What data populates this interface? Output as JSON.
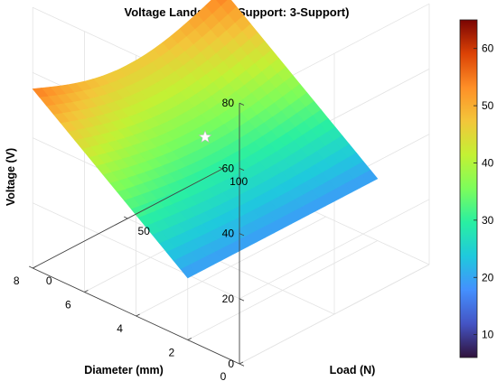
{
  "chart_data": {
    "type": "surface",
    "title": "Voltage Landscape (Support: 3-Support)",
    "xlabel": "Diameter (mm)",
    "ylabel": "Load (N)",
    "zlabel": "Voltage (V)",
    "x_ticks": [
      0,
      2,
      4,
      6,
      8
    ],
    "y_ticks": [
      0,
      50,
      100
    ],
    "z_ticks": [
      0,
      20,
      40,
      60,
      80
    ],
    "xlim": [
      0,
      8
    ],
    "ylim": [
      0,
      100
    ],
    "zlim": [
      0,
      80
    ],
    "colorbar": {
      "ticks": [
        10,
        20,
        30,
        40,
        50,
        60
      ],
      "range": [
        6,
        65
      ],
      "colormap": "turbo"
    },
    "surface": {
      "diameter_range": [
        2,
        8
      ],
      "load_range": [
        0,
        100
      ],
      "voltage_min": 19,
      "voltage_max": 55
    },
    "marker": {
      "symbol": "star",
      "diameter": 5,
      "load": 50,
      "voltage": 36,
      "color": "#ffffff"
    },
    "grid": true
  }
}
